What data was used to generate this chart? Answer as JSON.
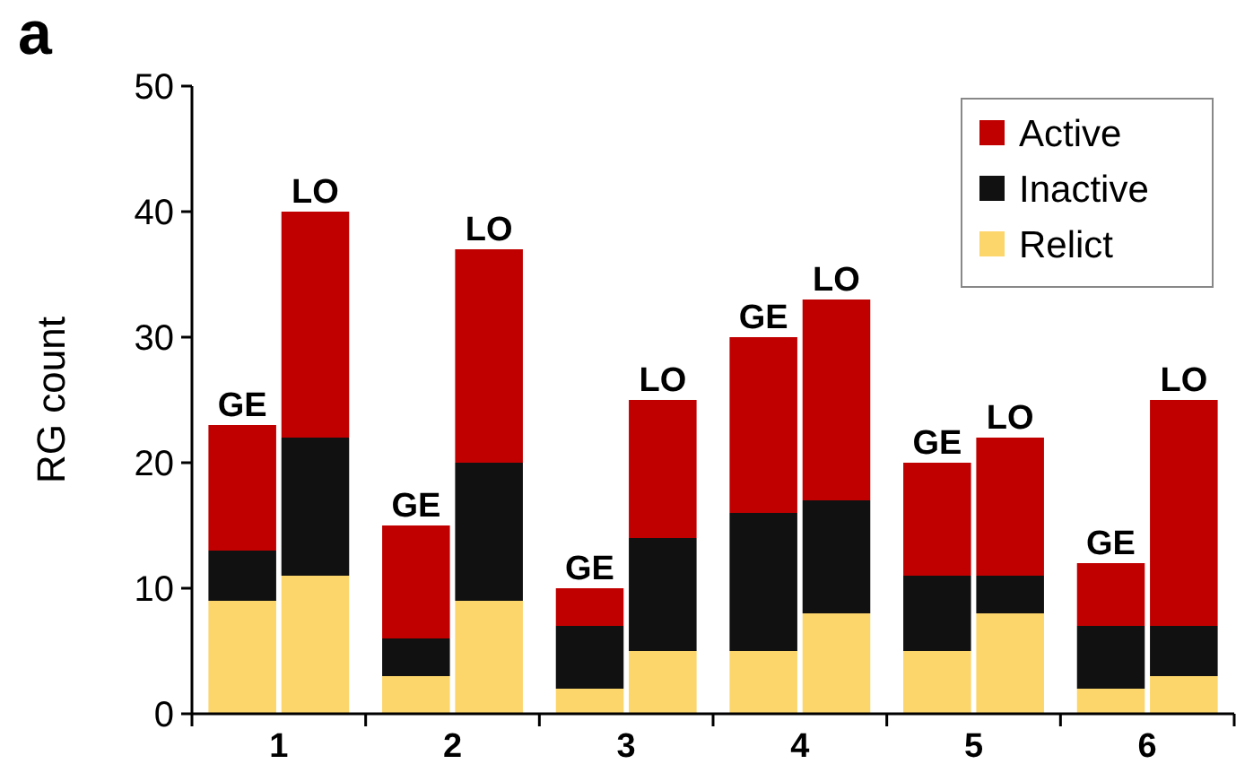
{
  "chart_data": {
    "type": "bar",
    "title": "a",
    "ylabel": "RG count",
    "stacked": true,
    "legend": "top right",
    "grid": false,
    "categories": [
      null,
      null,
      null,
      null,
      null,
      null,
      null,
      null,
      null,
      null,
      null,
      null
    ],
    "annotations": [
      "1",
      "2",
      "3",
      "4",
      "5",
      "6",
      {
        "text": "GE",
        "y": 23
      },
      {
        "text": "LO",
        "y": 40
      },
      {
        "text": "GE",
        "y": 15
      },
      {
        "text": "LO",
        "y": 37
      },
      {
        "text": "GE",
        "y": 10
      },
      {
        "text": "LO",
        "y": 25
      },
      {
        "text": "GE",
        "y": 30
      },
      {
        "text": "LO",
        "y": 33
      },
      {
        "text": "GE",
        "y": 20
      },
      {
        "text": "LO",
        "y": 22
      },
      {
        "text": "GE",
        "y": 12
      },
      {
        "text": "LO",
        "y": 25
      }
    ],
    "series": [
      {
        "name": "Relict",
        "color": "#fcd56b",
        "values": [
          9,
          11,
          3,
          9,
          2,
          5,
          5,
          8,
          5,
          8,
          2,
          3
        ]
      },
      {
        "name": "Inactive",
        "color": "#111111",
        "values": [
          4,
          11,
          3,
          11,
          5,
          9,
          11,
          9,
          6,
          3,
          5,
          4
        ]
      },
      {
        "name": "Active",
        "color": "#c00000",
        "values": [
          10,
          18,
          9,
          17,
          3,
          11,
          14,
          16,
          9,
          11,
          5,
          18
        ]
      }
    ],
    "ylim": [
      0,
      50
    ],
    "yticks": [
      0,
      10,
      20,
      30,
      40,
      50
    ]
  }
}
